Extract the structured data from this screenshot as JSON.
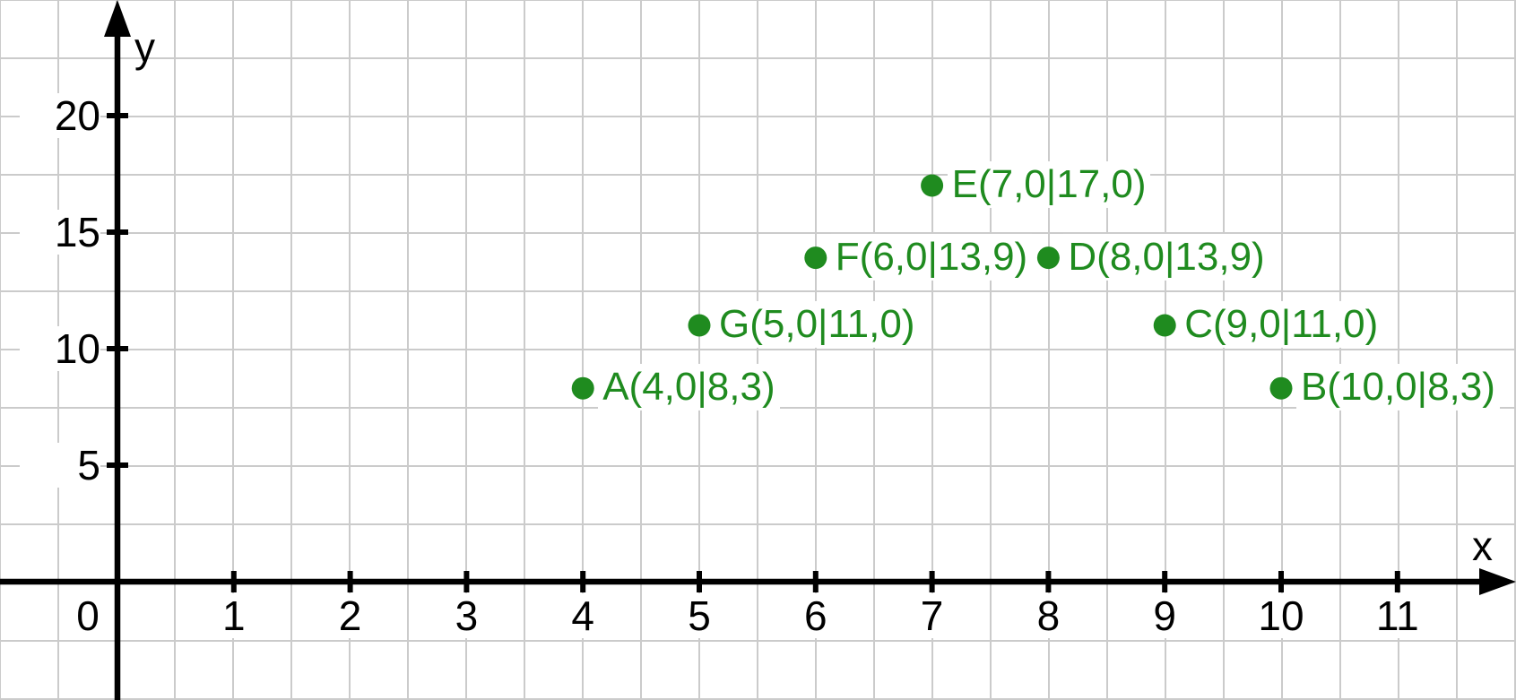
{
  "page": {
    "background": "#ffffff"
  },
  "chart_data": {
    "type": "scatter",
    "title": "",
    "x_axis": {
      "label": "x",
      "origin_label": "0",
      "tick_values": [
        1,
        2,
        3,
        4,
        5,
        6,
        7,
        8,
        9,
        10,
        11
      ],
      "tick_labels": [
        "1",
        "2",
        "3",
        "4",
        "5",
        "6",
        "7",
        "8",
        "9",
        "10",
        "11"
      ],
      "range": [
        -1.0,
        12.0
      ]
    },
    "y_axis": {
      "label": "y",
      "tick_values": [
        5,
        10,
        15,
        20
      ],
      "tick_labels": [
        "5",
        "10",
        "15",
        "20"
      ],
      "range": [
        -5.1,
        25.0
      ]
    },
    "grid": {
      "visible": true,
      "color": "#cbcbcb",
      "step_x_units": 0.5,
      "step_y_units": 2.5
    },
    "points": [
      {
        "name": "A",
        "x": 4.0,
        "y": 8.3,
        "label": "A(4,0|8,3)"
      },
      {
        "name": "B",
        "x": 10.0,
        "y": 8.3,
        "label": "B(10,0|8,3)"
      },
      {
        "name": "C",
        "x": 9.0,
        "y": 11.0,
        "label": "C(9,0|11,0)"
      },
      {
        "name": "D",
        "x": 8.0,
        "y": 13.9,
        "label": "D(8,0|13,9)"
      },
      {
        "name": "E",
        "x": 7.0,
        "y": 17.0,
        "label": "E(7,0|17,0)"
      },
      {
        "name": "F",
        "x": 6.0,
        "y": 13.9,
        "label": "F(6,0|13,9)"
      },
      {
        "name": "G",
        "x": 5.0,
        "y": 11.0,
        "label": "G(5,0|11,0)"
      }
    ],
    "point_color": "#1f8b1f",
    "axis_color": "#000000",
    "legend": {
      "visible": false
    }
  }
}
